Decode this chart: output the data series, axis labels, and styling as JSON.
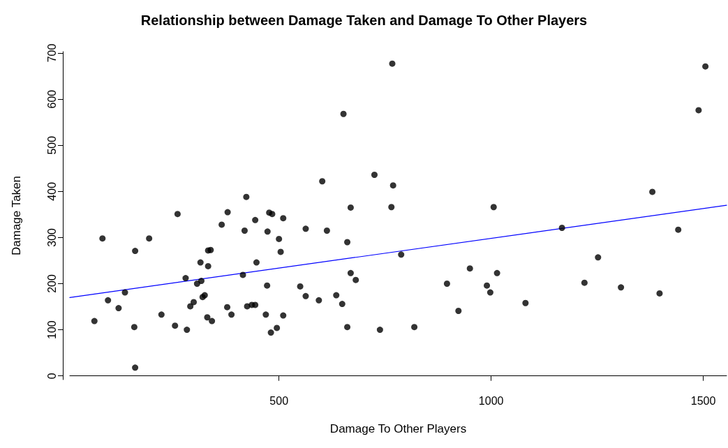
{
  "chart_data": {
    "type": "scatter",
    "title": "Relationship between Damage Taken and Damage To Other Players",
    "xlabel": "Damage To Other Players",
    "ylabel": "Damage Taken",
    "marker": "circle",
    "grid": false,
    "xlim": [
      7,
      1555
    ],
    "xticks": [
      500,
      1000,
      1500
    ],
    "ylim": [
      -8,
      703
    ],
    "yticks": [
      0,
      100,
      200,
      300,
      400,
      500,
      600,
      700
    ],
    "series": [
      {
        "color": "#000000",
        "x": [
          65,
          84,
          97,
          122,
          137,
          161,
          159,
          161,
          194,
          223,
          261,
          255,
          280,
          283,
          291,
          299,
          307,
          315,
          317,
          320,
          325,
          333,
          339,
          333,
          331,
          342,
          365,
          379,
          378,
          388,
          415,
          419,
          423,
          425,
          436,
          444,
          444,
          447,
          469,
          472,
          473,
          477,
          484,
          481,
          495,
          500,
          504,
          510,
          510,
          563,
          550,
          563,
          594,
          602,
          613,
          635,
          649,
          652,
          661,
          669,
          669,
          681,
          661,
          725,
          738,
          765,
          767,
          769,
          788,
          819,
          896,
          923,
          950,
          990,
          998,
          1006,
          1014,
          1081,
          1167,
          1220,
          1252,
          1306,
          1380,
          1397,
          1441,
          1489,
          1505
        ],
        "values": [
          119,
          298,
          164,
          147,
          181,
          271,
          106,
          18,
          298,
          133,
          351,
          109,
          212,
          100,
          151,
          160,
          200,
          246,
          206,
          171,
          175,
          272,
          273,
          238,
          127,
          119,
          328,
          355,
          149,
          133,
          219,
          315,
          388,
          151,
          154,
          338,
          154,
          246,
          133,
          196,
          313,
          354,
          351,
          94,
          104,
          297,
          269,
          342,
          131,
          319,
          194,
          173,
          164,
          422,
          315,
          175,
          156,
          568,
          290,
          365,
          223,
          208,
          106,
          436,
          100,
          366,
          677,
          413,
          263,
          106,
          200,
          141,
          233,
          196,
          181,
          366,
          223,
          158,
          321,
          202,
          257,
          192,
          399,
          179,
          317,
          576,
          671
        ]
      },
      {
        "type": "line",
        "color": "#0000ff",
        "line_style": "solid",
        "marker": "none",
        "x": [
          7,
          1555
        ],
        "values": [
          170,
          370
        ]
      }
    ]
  }
}
